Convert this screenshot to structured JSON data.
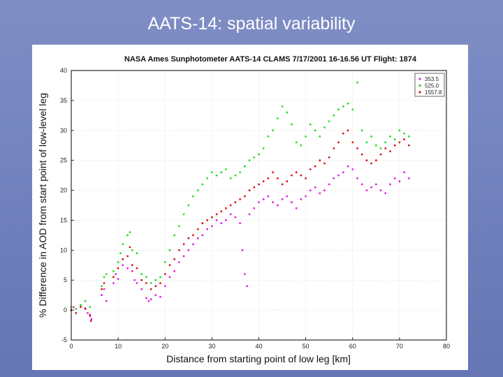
{
  "slide": {
    "title": "AATS-14: spatial variability"
  },
  "chart_data": {
    "type": "scatter",
    "title": "NASA Ames Sunphotometer AATS-14 CLAMS  7/17/2001 16-16.56  UT  Flight:  1874",
    "xlabel": "Distance from starting point of low leg [km]",
    "ylabel": "% Difference in AOD from start point of low-level leg",
    "xlim": [
      0,
      80
    ],
    "ylim": [
      -5,
      40
    ],
    "xticks": [
      0,
      10,
      20,
      30,
      40,
      50,
      60,
      70,
      80
    ],
    "yticks": [
      -5,
      0,
      5,
      10,
      15,
      20,
      25,
      30,
      35,
      40
    ],
    "legend_position": "top-right",
    "series": [
      {
        "name": "353.5",
        "color": "#e020e0",
        "points": [
          [
            0,
            0
          ],
          [
            0.5,
            0.5
          ],
          [
            1,
            0.2
          ],
          [
            2,
            0.8
          ],
          [
            3,
            0.3
          ],
          [
            3.5,
            -0.5
          ],
          [
            4,
            -1.0
          ],
          [
            4.3,
            -1.5
          ],
          [
            6.5,
            2.5
          ],
          [
            7,
            3.5
          ],
          [
            7.5,
            1.5
          ],
          [
            9,
            4.5
          ],
          [
            9.5,
            6
          ],
          [
            10,
            5.2
          ],
          [
            11,
            7.5
          ],
          [
            12,
            7
          ],
          [
            13,
            6.5
          ],
          [
            13.5,
            5
          ],
          [
            14,
            4.5
          ],
          [
            15,
            3.5
          ],
          [
            16,
            2
          ],
          [
            16.5,
            1.5
          ],
          [
            17,
            1.8
          ],
          [
            18,
            2.5
          ],
          [
            19,
            2.2
          ],
          [
            20,
            4
          ],
          [
            21,
            5.5
          ],
          [
            22,
            6.5
          ],
          [
            23,
            8
          ],
          [
            24,
            9
          ],
          [
            25,
            10
          ],
          [
            26,
            11
          ],
          [
            27,
            12
          ],
          [
            28,
            12.5
          ],
          [
            29,
            13.5
          ],
          [
            30,
            14
          ],
          [
            31,
            15
          ],
          [
            32,
            14.5
          ],
          [
            33,
            15
          ],
          [
            34,
            16
          ],
          [
            35,
            15.5
          ],
          [
            36,
            14.5
          ],
          [
            36.5,
            10
          ],
          [
            37,
            6
          ],
          [
            37.5,
            4
          ],
          [
            38,
            16
          ],
          [
            39,
            17
          ],
          [
            40,
            18
          ],
          [
            41,
            18.5
          ],
          [
            42,
            19
          ],
          [
            43,
            18
          ],
          [
            44,
            17.5
          ],
          [
            45,
            18.5
          ],
          [
            46,
            19
          ],
          [
            47,
            18
          ],
          [
            48,
            17
          ],
          [
            49,
            18.5
          ],
          [
            50,
            19
          ],
          [
            51,
            20
          ],
          [
            52,
            20.5
          ],
          [
            53,
            19.5
          ],
          [
            54,
            20
          ],
          [
            55,
            21
          ],
          [
            56,
            22
          ],
          [
            57,
            22.5
          ],
          [
            58,
            23
          ],
          [
            59,
            24
          ],
          [
            60,
            23.5
          ],
          [
            61,
            22
          ],
          [
            62,
            21
          ],
          [
            63,
            20
          ],
          [
            64,
            20.5
          ],
          [
            65,
            21
          ],
          [
            66,
            20
          ],
          [
            67,
            19.5
          ],
          [
            68,
            21
          ],
          [
            69,
            22
          ],
          [
            70,
            21.5
          ],
          [
            71,
            23
          ],
          [
            72,
            22
          ]
        ]
      },
      {
        "name": "525.0",
        "color": "#22dd22",
        "points": [
          [
            0,
            0.5
          ],
          [
            1,
            0.2
          ],
          [
            2,
            0.8
          ],
          [
            3,
            1.5
          ],
          [
            4,
            0.5
          ],
          [
            6.5,
            4
          ],
          [
            7,
            5.5
          ],
          [
            7.5,
            6
          ],
          [
            9,
            6.5
          ],
          [
            10,
            8
          ],
          [
            10.5,
            9.5
          ],
          [
            11,
            11
          ],
          [
            12,
            12.5
          ],
          [
            12.5,
            13
          ],
          [
            13,
            10
          ],
          [
            14,
            9.5
          ],
          [
            15,
            6
          ],
          [
            16,
            5.5
          ],
          [
            17,
            4.5
          ],
          [
            18,
            5
          ],
          [
            19,
            5.5
          ],
          [
            20,
            8
          ],
          [
            21,
            10
          ],
          [
            22,
            12.5
          ],
          [
            23,
            14
          ],
          [
            24,
            16
          ],
          [
            25,
            17.5
          ],
          [
            26,
            19
          ],
          [
            27,
            20
          ],
          [
            28,
            21
          ],
          [
            29,
            22
          ],
          [
            30,
            23
          ],
          [
            31,
            22.5
          ],
          [
            32,
            23
          ],
          [
            33,
            23.5
          ],
          [
            34,
            22
          ],
          [
            35,
            22.5
          ],
          [
            36,
            23
          ],
          [
            37,
            24
          ],
          [
            38,
            25
          ],
          [
            39,
            25.5
          ],
          [
            40,
            26
          ],
          [
            41,
            27
          ],
          [
            42,
            29
          ],
          [
            43,
            30
          ],
          [
            44,
            32
          ],
          [
            45,
            34
          ],
          [
            46,
            33
          ],
          [
            47,
            31
          ],
          [
            48,
            28
          ],
          [
            49,
            27.5
          ],
          [
            50,
            29
          ],
          [
            51,
            31
          ],
          [
            52,
            30
          ],
          [
            53,
            29
          ],
          [
            54,
            30.5
          ],
          [
            55,
            31.5
          ],
          [
            56,
            32.5
          ],
          [
            57,
            33.5
          ],
          [
            58,
            34
          ],
          [
            59,
            34.5
          ],
          [
            60,
            33.5
          ],
          [
            61,
            38
          ],
          [
            62,
            30
          ],
          [
            63,
            28
          ],
          [
            64,
            29
          ],
          [
            65,
            27.5
          ],
          [
            66,
            27
          ],
          [
            67,
            28
          ],
          [
            68,
            29
          ],
          [
            69,
            28.5
          ],
          [
            70,
            30
          ],
          [
            71,
            29.5
          ],
          [
            72,
            29
          ]
        ]
      },
      {
        "name": "1557.8",
        "color": "#dd1111",
        "points": [
          [
            0,
            0
          ],
          [
            1,
            -0.5
          ],
          [
            2,
            0.5
          ],
          [
            3,
            0.2
          ],
          [
            4,
            -0.8
          ],
          [
            4.2,
            -1.8
          ],
          [
            6.5,
            3.5
          ],
          [
            7,
            4.5
          ],
          [
            9,
            5.5
          ],
          [
            10,
            7
          ],
          [
            11,
            8.5
          ],
          [
            12,
            9
          ],
          [
            12.5,
            10.5
          ],
          [
            13,
            7.5
          ],
          [
            14,
            7
          ],
          [
            15,
            5
          ],
          [
            16,
            4.5
          ],
          [
            17,
            3.5
          ],
          [
            18,
            4
          ],
          [
            19,
            4.5
          ],
          [
            20,
            6
          ],
          [
            21,
            7.5
          ],
          [
            22,
            8.5
          ],
          [
            23,
            10
          ],
          [
            24,
            11
          ],
          [
            25,
            12
          ],
          [
            26,
            12.5
          ],
          [
            27,
            13.5
          ],
          [
            28,
            14.5
          ],
          [
            29,
            15
          ],
          [
            30,
            15.5
          ],
          [
            31,
            16
          ],
          [
            32,
            16.5
          ],
          [
            33,
            17
          ],
          [
            34,
            17.5
          ],
          [
            35,
            18
          ],
          [
            36,
            18.5
          ],
          [
            37,
            19
          ],
          [
            38,
            20
          ],
          [
            39,
            20.5
          ],
          [
            40,
            21
          ],
          [
            41,
            21.5
          ],
          [
            42,
            22
          ],
          [
            43,
            23
          ],
          [
            44,
            22
          ],
          [
            45,
            21
          ],
          [
            46,
            21.5
          ],
          [
            47,
            22.5
          ],
          [
            48,
            23
          ],
          [
            49,
            22.5
          ],
          [
            50,
            22
          ],
          [
            51,
            23.5
          ],
          [
            52,
            24
          ],
          [
            53,
            25
          ],
          [
            54,
            24.5
          ],
          [
            55,
            25.5
          ],
          [
            56,
            27
          ],
          [
            57,
            28
          ],
          [
            58,
            29.5
          ],
          [
            59,
            30
          ],
          [
            60,
            28
          ],
          [
            61,
            27
          ],
          [
            62,
            26
          ],
          [
            63,
            25
          ],
          [
            64,
            24.5
          ],
          [
            65,
            25
          ],
          [
            66,
            26
          ],
          [
            67,
            27
          ],
          [
            68,
            26.5
          ],
          [
            69,
            27.5
          ],
          [
            70,
            28
          ],
          [
            71,
            28.5
          ],
          [
            72,
            27.5
          ]
        ]
      }
    ]
  }
}
